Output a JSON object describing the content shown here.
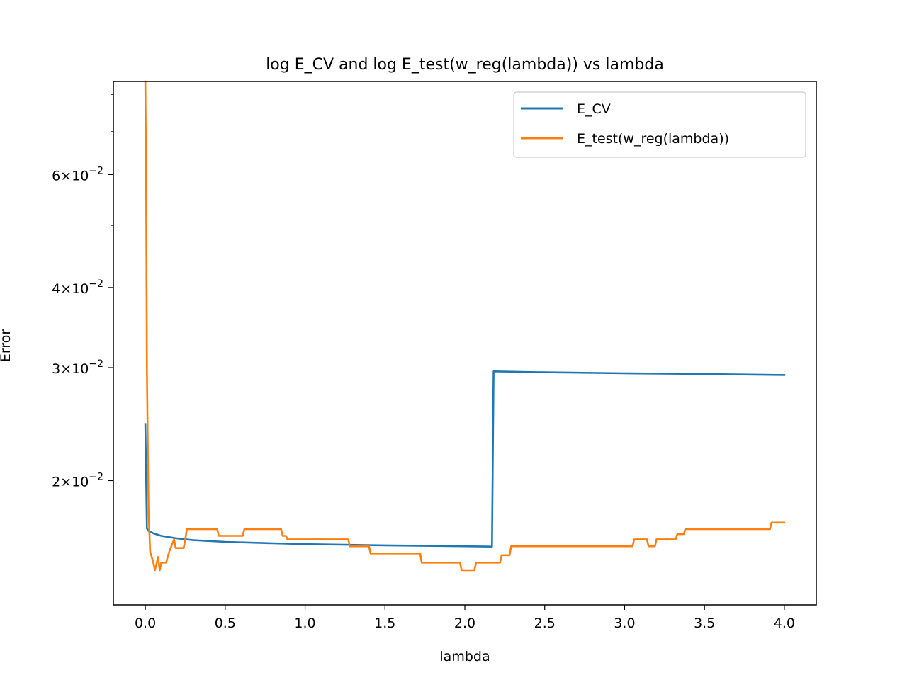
{
  "chart_data": {
    "type": "line",
    "title": "log E_CV and log E_test(w_reg(lambda)) vs lambda",
    "xlabel": "lambda",
    "ylabel": "Error",
    "xlim": [
      -0.2,
      4.2
    ],
    "ylim": [
      0.0128,
      0.0838
    ],
    "yscale": "log",
    "grid": false,
    "legend_position": "upper right",
    "x_ticks": [
      {
        "value": 0.0,
        "label": "0.0"
      },
      {
        "value": 0.5,
        "label": "0.5"
      },
      {
        "value": 1.0,
        "label": "1.0"
      },
      {
        "value": 1.5,
        "label": "1.5"
      },
      {
        "value": 2.0,
        "label": "2.0"
      },
      {
        "value": 2.5,
        "label": "2.5"
      },
      {
        "value": 3.0,
        "label": "3.0"
      },
      {
        "value": 3.5,
        "label": "3.5"
      },
      {
        "value": 4.0,
        "label": "4.0"
      }
    ],
    "y_ticks": [
      {
        "value": 0.02,
        "mantissa": "2",
        "exponent": "−2"
      },
      {
        "value": 0.03,
        "mantissa": "3",
        "exponent": "−2"
      },
      {
        "value": 0.04,
        "mantissa": "4",
        "exponent": "−2"
      },
      {
        "value": 0.06,
        "mantissa": "6",
        "exponent": "−2"
      }
    ],
    "y_minor_ticks": [
      0.05,
      0.07,
      0.08
    ],
    "series": [
      {
        "name": "E_CV",
        "color": "#1f77b4",
        "x": [
          0.0,
          0.01,
          0.02,
          0.05,
          0.1,
          0.2,
          0.3,
          0.5,
          0.75,
          1.0,
          1.5,
          2.0,
          2.17,
          2.18,
          2.5,
          3.0,
          3.5,
          4.0
        ],
        "y": [
          0.0245,
          0.01685,
          0.0167,
          0.01655,
          0.0164,
          0.01625,
          0.01615,
          0.01605,
          0.01598,
          0.01592,
          0.01585,
          0.0158,
          0.01578,
          0.0296,
          0.0295,
          0.0294,
          0.02932,
          0.02922
        ]
      },
      {
        "name": "E_test(w_reg(lambda))",
        "color": "#ff7f0e",
        "x": [
          0.0,
          0.005,
          0.01,
          0.02,
          0.03,
          0.05,
          0.06,
          0.08,
          0.09,
          0.1,
          0.11,
          0.13,
          0.15,
          0.18,
          0.19,
          0.2,
          0.24,
          0.25,
          0.26,
          0.45,
          0.46,
          0.61,
          0.62,
          0.85,
          0.86,
          0.88,
          0.89,
          1.27,
          1.28,
          1.4,
          1.41,
          1.72,
          1.73,
          1.97,
          1.98,
          2.06,
          2.07,
          2.22,
          2.23,
          2.28,
          2.29,
          3.05,
          3.06,
          3.14,
          3.15,
          3.19,
          3.2,
          3.32,
          3.33,
          3.37,
          3.38,
          3.91,
          3.92,
          4.0
        ],
        "y": [
          0.0838,
          0.06,
          0.03,
          0.018,
          0.0155,
          0.0149,
          0.0145,
          0.0152,
          0.0145,
          0.0149,
          0.0149,
          0.0149,
          0.0155,
          0.0162,
          0.0157,
          0.0157,
          0.0157,
          0.0162,
          0.0168,
          0.0168,
          0.0164,
          0.0164,
          0.0168,
          0.0168,
          0.0164,
          0.0164,
          0.0162,
          0.0162,
          0.0158,
          0.0158,
          0.0154,
          0.0154,
          0.0149,
          0.0149,
          0.0145,
          0.0145,
          0.0149,
          0.0149,
          0.0153,
          0.0153,
          0.0158,
          0.0158,
          0.0162,
          0.0162,
          0.0158,
          0.0158,
          0.0162,
          0.0162,
          0.0165,
          0.0165,
          0.0168,
          0.0168,
          0.0172,
          0.0172
        ]
      }
    ]
  }
}
